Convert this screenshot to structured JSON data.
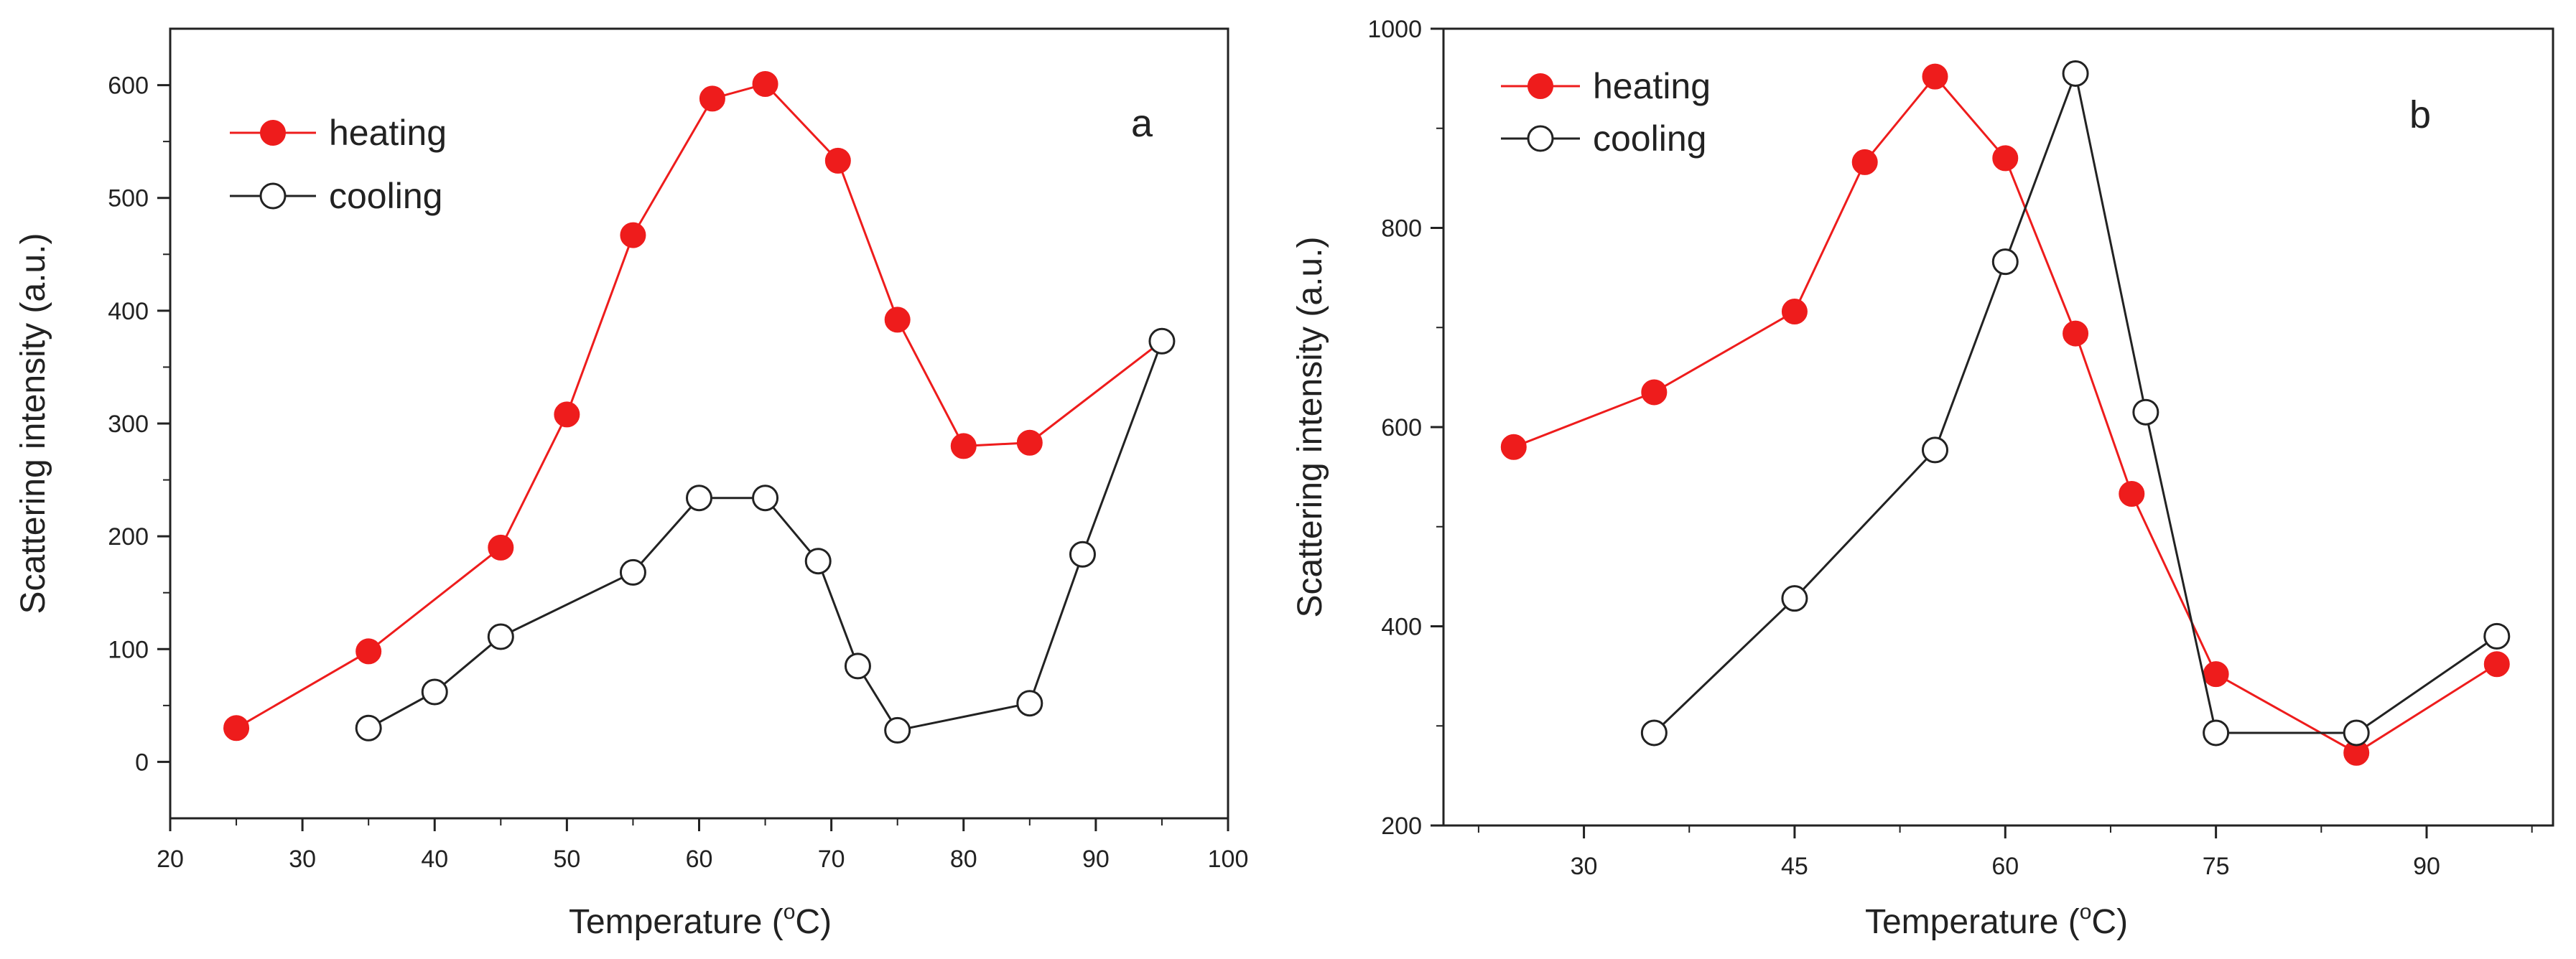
{
  "chart_data": [
    {
      "type": "line",
      "panel_label": "a",
      "xlabel": "Temperature (",
      "xlabel_degree": "o",
      "xlabel_unit": "C)",
      "ylabel": "Scattering intensity (a.u.)",
      "xlim": [
        20,
        100
      ],
      "ylim": [
        -50,
        650
      ],
      "xticks": [
        20,
        30,
        40,
        50,
        60,
        70,
        80,
        90,
        100
      ],
      "yticks": [
        0,
        100,
        200,
        300,
        400,
        500,
        600
      ],
      "legend_position": "top-left",
      "series": [
        {
          "name": "heating",
          "color": "#ee1c1c",
          "marker": "filled-circle",
          "x": [
            25,
            35,
            45,
            50,
            55,
            61,
            65,
            70.5,
            75,
            80,
            85,
            95
          ],
          "y": [
            30,
            98,
            190,
            308,
            467,
            588,
            601,
            533,
            392,
            280,
            283,
            373
          ]
        },
        {
          "name": "cooling",
          "color": "#222222",
          "marker": "open-circle",
          "x": [
            35,
            40,
            45,
            55,
            60,
            65,
            69,
            72,
            75,
            85,
            89,
            95
          ],
          "y": [
            30,
            62,
            111,
            168,
            234,
            234,
            178,
            85,
            28,
            52,
            184,
            373
          ]
        }
      ]
    },
    {
      "type": "line",
      "panel_label": "b",
      "xlabel": "Temperature (",
      "xlabel_degree": "o",
      "xlabel_unit": "C)",
      "ylabel": "Scattering intensity (a.u.)",
      "xlim": [
        20,
        99
      ],
      "ylim": [
        200,
        1000
      ],
      "xticks": [
        30,
        45,
        60,
        75,
        90
      ],
      "yticks": [
        200,
        400,
        600,
        800,
        1000
      ],
      "legend_position": "top-left",
      "series": [
        {
          "name": "heating",
          "color": "#ee1c1c",
          "marker": "filled-circle",
          "x": [
            25,
            35,
            45,
            50,
            55,
            60,
            65,
            69,
            75,
            85,
            95
          ],
          "y": [
            580,
            635,
            716,
            866,
            952,
            870,
            694,
            533,
            352,
            273,
            362
          ]
        },
        {
          "name": "cooling",
          "color": "#222222",
          "marker": "open-circle",
          "x": [
            35,
            45,
            55,
            60,
            65,
            70,
            75,
            85,
            95
          ],
          "y": [
            293,
            428,
            577,
            766,
            955,
            615,
            293,
            293,
            390
          ]
        }
      ]
    }
  ]
}
